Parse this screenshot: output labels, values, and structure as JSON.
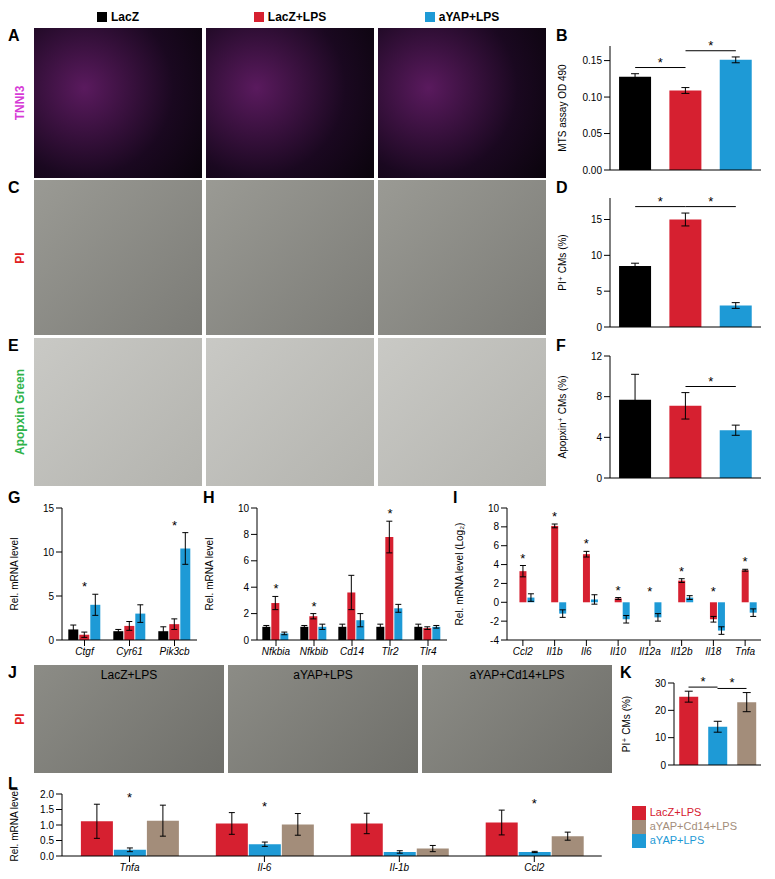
{
  "figure": {
    "header_legend": [
      {
        "name": "LacZ",
        "color": "#000000"
      },
      {
        "name": "LacZ+LPS",
        "color": "#d62030"
      },
      {
        "name": "aYAP+LPS",
        "color": "#1e9ad6"
      }
    ],
    "image_panels": [
      {
        "panel": "A",
        "channel": "TNNI3",
        "channel_color": "#d63ad6"
      },
      {
        "panel": "C",
        "channel": "PI",
        "channel_color": "#e02020"
      },
      {
        "panel": "E",
        "channel": "Apopxin Green",
        "channel_color": "#2fb34a"
      },
      {
        "panel": "J",
        "channel": "PI",
        "channel_color": "#e02020",
        "titles": [
          "LacZ+LPS",
          "aYAP+LPS",
          "aYAP+Cd14+LPS"
        ]
      }
    ]
  },
  "chart_data": [
    {
      "panel": "B",
      "type": "bar",
      "y_label": "MTS assay OD 490",
      "categories": [
        "LacZ",
        "LacZ+LPS",
        "aYAP+LPS"
      ],
      "values": [
        0.128,
        0.109,
        0.151
      ],
      "errors": [
        0.004,
        0.004,
        0.004
      ],
      "colors": [
        "#000000",
        "#d62030",
        "#1e9ad6"
      ],
      "ylim": [
        0,
        0.17
      ],
      "yticks": [
        {
          "value": 0,
          "label": "0.00"
        },
        0.05,
        {
          "value": 0.1,
          "label": "0.10"
        },
        0.15
      ],
      "tick_labels": "y",
      "grid": false,
      "significance": {
        "text": "*",
        "pairs": [
          [
            0,
            1
          ],
          [
            1,
            2
          ]
        ]
      }
    },
    {
      "panel": "D",
      "type": "bar",
      "y_label": "PI⁺ CMs (%)",
      "categories": [
        "LacZ",
        "LacZ+LPS",
        "aYAP+LPS"
      ],
      "values": [
        8.5,
        15,
        3
      ],
      "errors": [
        0.4,
        0.9,
        0.4
      ],
      "colors": [
        "#000000",
        "#d62030",
        "#1e9ad6"
      ],
      "ylim": [
        0,
        18
      ],
      "yticks": [
        0,
        5,
        10,
        15
      ],
      "tick_labels": "y",
      "grid": false,
      "significance": {
        "text": "*",
        "pairs": [
          [
            0,
            1
          ],
          [
            1,
            2
          ]
        ]
      }
    },
    {
      "panel": "F",
      "type": "bar",
      "y_label": "Apopxin⁺ CMs (%)",
      "categories": [
        "LacZ",
        "LacZ+LPS",
        "aYAP+LPS"
      ],
      "values": [
        7.7,
        7.1,
        4.7
      ],
      "errors": [
        2.5,
        1.3,
        0.5
      ],
      "colors": [
        "#000000",
        "#d62030",
        "#1e9ad6"
      ],
      "ylim": [
        0,
        12
      ],
      "yticks": [
        0,
        4,
        8,
        12
      ],
      "tick_labels": "y",
      "grid": false,
      "significance": {
        "text": "*",
        "pairs": [
          [
            1,
            2
          ]
        ]
      }
    },
    {
      "panel": "G",
      "type": "bar",
      "y_label": "Rel. mRNA level",
      "categories": [
        "Ctgf",
        "Cyr61",
        "Pik3cb"
      ],
      "series": [
        {
          "name": "LacZ",
          "color": "#000000",
          "values": [
            1.2,
            1.0,
            1.0
          ],
          "errors": [
            0.5,
            0.2,
            0.5
          ]
        },
        {
          "name": "LacZ+LPS",
          "color": "#d62030",
          "values": [
            0.6,
            1.6,
            1.8
          ],
          "errors": [
            0.3,
            0.5,
            0.6
          ]
        },
        {
          "name": "aYAP+LPS",
          "color": "#1e9ad6",
          "values": [
            4.0,
            3.0,
            10.4
          ],
          "errors": [
            1.2,
            1.0,
            1.8
          ]
        }
      ],
      "ylim": [
        0,
        15
      ],
      "yticks": [
        0,
        5,
        10,
        15
      ],
      "grid": false,
      "significance": {
        "text": "*",
        "categories": [
          "Ctgf",
          "Pik3cb"
        ]
      }
    },
    {
      "panel": "H",
      "type": "bar",
      "y_label": "Rel. mRNA level",
      "categories": [
        "Nfkbia",
        "Nfkbib",
        "Cd14",
        "Tlr2",
        "Tlr4"
      ],
      "series": [
        {
          "name": "LacZ",
          "color": "#000000",
          "values": [
            1.0,
            1.0,
            1.0,
            1.0,
            1.0
          ],
          "errors": [
            0.1,
            0.1,
            0.2,
            0.2,
            0.2
          ]
        },
        {
          "name": "LacZ+LPS",
          "color": "#d62030",
          "values": [
            2.8,
            1.8,
            3.6,
            7.8,
            0.9
          ],
          "errors": [
            0.5,
            0.2,
            1.3,
            1.2,
            0.1
          ]
        },
        {
          "name": "aYAP+LPS",
          "color": "#1e9ad6",
          "values": [
            0.5,
            1.0,
            1.5,
            2.4,
            1.0
          ],
          "errors": [
            0.1,
            0.2,
            0.5,
            0.3,
            0.1
          ]
        }
      ],
      "ylim": [
        0,
        10
      ],
      "yticks": [
        0,
        2,
        4,
        6,
        8,
        10
      ],
      "grid": false,
      "significance": {
        "text": "*",
        "categories": [
          "Nfkbia",
          "Nfkbib",
          "Tlr2"
        ]
      }
    },
    {
      "panel": "I",
      "type": "bar",
      "y_label": "Rel. mRNA level (Log₂)",
      "categories": [
        "Ccl2",
        "Il1b",
        "Il6",
        "Il10",
        "Il12a",
        "Il12b",
        "Il18",
        "Tnfa"
      ],
      "series": [
        {
          "name": "LacZ",
          "color": "#000000",
          "values": [
            0,
            0,
            0,
            0,
            0,
            0,
            0,
            0
          ],
          "errors": [
            0.3,
            0.5,
            0.4,
            0.1,
            0.4,
            0.2,
            0.3,
            0.2
          ]
        },
        {
          "name": "LacZ+LPS",
          "color": "#d62030",
          "values": [
            3.3,
            8.1,
            5.1,
            0.4,
            0,
            2.3,
            -1.8,
            3.4
          ],
          "errors": [
            0.6,
            0.2,
            0.3,
            0.1,
            0.4,
            0.2,
            0.3,
            0.1
          ]
        },
        {
          "name": "aYAP+LPS",
          "color": "#1e9ad6",
          "values": [
            0.5,
            -1.2,
            0.3,
            -1.8,
            -1.6,
            0.5,
            -3.0,
            -1.1
          ],
          "errors": [
            0.4,
            0.4,
            0.5,
            0.4,
            0.4,
            0.2,
            0.4,
            0.4
          ]
        }
      ],
      "ylim": [
        -4,
        10
      ],
      "yticks": [
        -4,
        -2,
        0,
        2,
        4,
        6,
        8,
        10
      ],
      "grid": false,
      "significance": {
        "text": "*",
        "categories": [
          "Ccl2",
          "Il1b",
          "Il6",
          "Il10",
          "Il12a",
          "Il12b",
          "Il18",
          "Tnfa"
        ]
      }
    },
    {
      "panel": "K",
      "type": "bar",
      "y_label": "PI⁺ CMs (%)",
      "categories": [
        "LacZ+LPS",
        "aYAP+LPS",
        "aYAP+Cd14+LPS"
      ],
      "values": [
        25,
        14,
        23
      ],
      "errors": [
        2,
        2,
        3.5
      ],
      "colors": [
        "#d62030",
        "#1e9ad6",
        "#a38d7a"
      ],
      "ylim": [
        0,
        30
      ],
      "yticks": [
        0,
        10,
        20,
        30
      ],
      "tick_labels": "y",
      "grid": false,
      "significance": {
        "text": "*",
        "pairs": [
          [
            0,
            1
          ],
          [
            1,
            2
          ]
        ]
      }
    },
    {
      "panel": "L",
      "type": "bar",
      "y_label": "Rel. mRNA level",
      "categories": [
        "Tnfa",
        "Il-6",
        "Il-1b",
        "Ccl2"
      ],
      "series": [
        {
          "name": "LacZ+LPS",
          "color": "#d62030",
          "values": [
            1.12,
            1.05,
            1.05,
            1.08
          ],
          "errors": [
            0.55,
            0.35,
            0.33,
            0.4
          ]
        },
        {
          "name": "aYAP+LPS",
          "color": "#1e9ad6",
          "values": [
            0.2,
            0.38,
            0.13,
            0.13
          ],
          "errors": [
            0.06,
            0.07,
            0.04,
            0.02
          ]
        },
        {
          "name": "aYAP+Cd14+LPS",
          "color": "#a38d7a",
          "values": [
            1.14,
            1.02,
            0.24,
            0.64
          ],
          "errors": [
            0.5,
            0.35,
            0.1,
            0.13
          ]
        }
      ],
      "ylim": [
        0,
        2
      ],
      "yticks": [
        {
          "value": 0,
          "label": "0.0"
        },
        0.5,
        {
          "value": 1,
          "label": "1.0"
        },
        1.5,
        {
          "value": 2,
          "label": "2.0"
        }
      ],
      "grid": false,
      "legend": "right",
      "significance": {
        "text": "*",
        "categories": [
          "Tnfa",
          "Il-6",
          "Ccl2"
        ]
      }
    }
  ]
}
